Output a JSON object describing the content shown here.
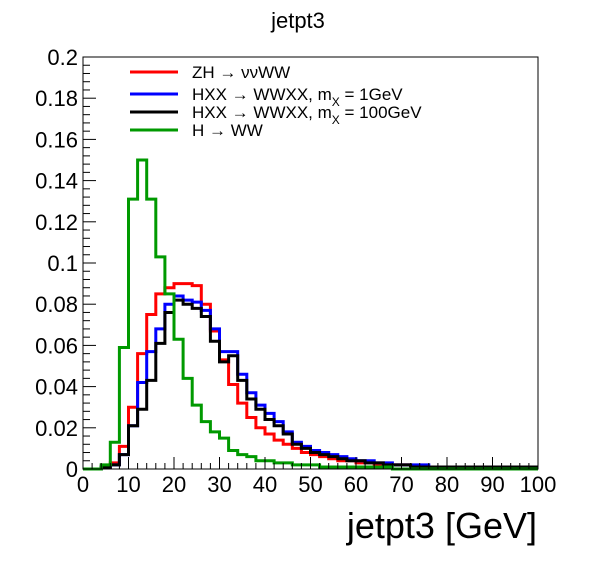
{
  "chart_data": {
    "type": "line",
    "title": "jetpt3",
    "xlabel": "jetpt3 [GeV]",
    "ylabel": "",
    "xlim": [
      0,
      100
    ],
    "ylim": [
      0,
      0.2
    ],
    "grid": false,
    "legend_position": "top",
    "x_ticks": [
      "0",
      "10",
      "20",
      "30",
      "40",
      "50",
      "60",
      "70",
      "80",
      "90",
      "100"
    ],
    "y_ticks": [
      "0",
      "0.02",
      "0.04",
      "0.06",
      "0.08",
      "0.1",
      "0.12",
      "0.14",
      "0.16",
      "0.18",
      "0.2"
    ],
    "bin_edges": [
      0,
      2,
      4,
      6,
      8,
      10,
      12,
      14,
      16,
      18,
      20,
      22,
      24,
      26,
      28,
      30,
      32,
      34,
      36,
      38,
      40,
      42,
      44,
      46,
      48,
      50,
      52,
      54,
      56,
      58,
      60,
      62,
      64,
      66,
      68,
      70,
      72,
      74,
      76,
      78,
      80,
      82,
      84,
      86,
      88,
      90,
      92,
      94,
      96,
      98,
      100
    ],
    "series": [
      {
        "label_main": "ZH → ννWW",
        "label_sub": "",
        "label_tail": "",
        "color": "#ff0000",
        "values": [
          0,
          0,
          0.001,
          0.003,
          0.011,
          0.03,
          0.056,
          0.075,
          0.085,
          0.088,
          0.09,
          0.09,
          0.089,
          0.08,
          0.067,
          0.053,
          0.041,
          0.032,
          0.025,
          0.02,
          0.017,
          0.014,
          0.012,
          0.01,
          0.008,
          0.007,
          0.006,
          0.005,
          0.004,
          0.004,
          0.003,
          0.003,
          0.002,
          0.002,
          0.002,
          0.002,
          0.001,
          0.001,
          0.001,
          0.001,
          0.001,
          0.001,
          0.001,
          0.001,
          0.001,
          0.001,
          0.001,
          0.001,
          0.001,
          0.001
        ]
      },
      {
        "label_main": "HXX → WWXX, m",
        "label_sub": "X",
        "label_tail": " = 1GeV",
        "color": "#0000ff",
        "values": [
          0,
          0,
          0.001,
          0.002,
          0.007,
          0.021,
          0.042,
          0.057,
          0.068,
          0.08,
          0.084,
          0.082,
          0.081,
          0.077,
          0.068,
          0.057,
          0.057,
          0.046,
          0.037,
          0.031,
          0.027,
          0.023,
          0.018,
          0.013,
          0.011,
          0.009,
          0.008,
          0.007,
          0.006,
          0.005,
          0.004,
          0.004,
          0.003,
          0.003,
          0.002,
          0.002,
          0.002,
          0.002,
          0.001,
          0.001,
          0.001,
          0.001,
          0.001,
          0.001,
          0.001,
          0.001,
          0.001,
          0.001,
          0.001,
          0.001
        ]
      },
      {
        "label_main": "HXX → WWXX, m",
        "label_sub": "X",
        "label_tail": " = 100GeV",
        "color": "#000000",
        "values": [
          0,
          0,
          0.001,
          0.002,
          0.007,
          0.021,
          0.029,
          0.043,
          0.061,
          0.076,
          0.082,
          0.08,
          0.078,
          0.074,
          0.062,
          0.052,
          0.055,
          0.043,
          0.034,
          0.029,
          0.024,
          0.021,
          0.017,
          0.012,
          0.01,
          0.008,
          0.007,
          0.006,
          0.005,
          0.004,
          0.004,
          0.003,
          0.003,
          0.002,
          0.002,
          0.002,
          0.001,
          0.001,
          0.001,
          0.001,
          0.001,
          0.001,
          0.001,
          0.001,
          0.001,
          0.001,
          0.001,
          0.001,
          0.001,
          0.001
        ]
      },
      {
        "label_main": "H → WW",
        "label_sub": "",
        "label_tail": "",
        "color": "#009900",
        "values": [
          0,
          0,
          0.002,
          0.013,
          0.059,
          0.131,
          0.15,
          0.131,
          0.103,
          0.085,
          0.063,
          0.044,
          0.031,
          0.023,
          0.018,
          0.015,
          0.009,
          0.007,
          0.006,
          0.004,
          0.004,
          0.003,
          0.003,
          0.002,
          0.002,
          0.002,
          0.001,
          0.001,
          0.001,
          0.001,
          0.001,
          0.001,
          0.001,
          0.001,
          0,
          0,
          0,
          0,
          0,
          0,
          0,
          0,
          0,
          0,
          0,
          0,
          0,
          0,
          0,
          0
        ]
      }
    ]
  }
}
